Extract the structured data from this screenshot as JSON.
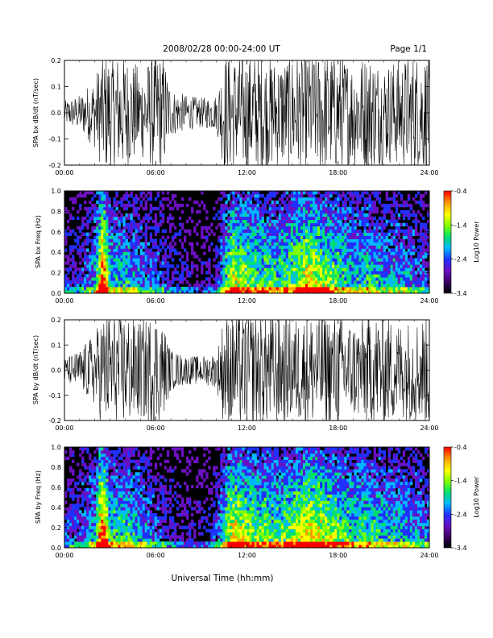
{
  "header": {
    "date_range": "2008/02/28  00:00-24:00 UT",
    "page": "Page 1/1"
  },
  "footer": {
    "x_axis_title": "Universal Time (hh:mm)"
  },
  "colors": {
    "trace": "#000000",
    "spectrogram_background": "#000000",
    "colormap": [
      "#000000",
      "#3a0060",
      "#6a10c0",
      "#2030ff",
      "#00b8ff",
      "#00e070",
      "#80ff00",
      "#ffff00",
      "#ffa000",
      "#ff0000"
    ]
  },
  "chart_data": [
    {
      "type": "line",
      "ylabel": "SPA bx dB/dt (nT/sec)",
      "x_range": [
        0,
        24
      ],
      "ylim": [
        -0.2,
        0.2
      ],
      "yticks": [
        "0.2",
        "0.1",
        "0.0",
        "-0.1",
        "-0.2"
      ],
      "x_ticks": [
        "00:00",
        "06:00",
        "12:00",
        "18:00",
        "24:00"
      ],
      "envelope": {
        "hours": [
          0,
          1,
          2,
          2.5,
          3,
          4,
          5,
          6,
          6.5,
          7,
          8,
          9,
          10,
          10.5,
          11,
          12,
          13,
          14,
          15,
          16,
          17,
          18,
          19,
          20,
          21,
          22,
          23,
          24
        ],
        "amplitude": [
          0.04,
          0.06,
          0.12,
          0.2,
          0.2,
          0.2,
          0.15,
          0.2,
          0.2,
          0.08,
          0.06,
          0.05,
          0.06,
          0.2,
          0.2,
          0.2,
          0.2,
          0.18,
          0.2,
          0.2,
          0.2,
          0.2,
          0.18,
          0.2,
          0.17,
          0.18,
          0.2,
          0.2
        ]
      }
    },
    {
      "type": "heatmap",
      "ylabel": "SPA bx Freq (Hz)",
      "x_range": [
        0,
        24
      ],
      "ylim": [
        0,
        1.0
      ],
      "yticks": [
        "1.0",
        "0.8",
        "0.6",
        "0.4",
        "0.2",
        "0.0"
      ],
      "x_ticks": [
        "00:00",
        "06:00",
        "12:00",
        "18:00",
        "24:00"
      ],
      "colorbar": {
        "label": "Log10 Power",
        "ticks": [
          "-0.4",
          "-1.4",
          "-2.4",
          "-3.4"
        ],
        "range": [
          -3.4,
          -0.4
        ]
      },
      "activity": {
        "hours": [
          0,
          1,
          2,
          2.5,
          2.7,
          3,
          4,
          5,
          6,
          7,
          8,
          9,
          10,
          11,
          12,
          13,
          14,
          15,
          16,
          17,
          18,
          19,
          20,
          21,
          22,
          23,
          24
        ],
        "level": [
          0.2,
          0.25,
          0.4,
          0.95,
          0.8,
          0.45,
          0.45,
          0.35,
          0.3,
          0.2,
          0.15,
          0.12,
          0.2,
          0.7,
          0.6,
          0.55,
          0.5,
          0.6,
          0.75,
          0.65,
          0.55,
          0.45,
          0.5,
          0.4,
          0.4,
          0.35,
          0.3
        ]
      }
    },
    {
      "type": "line",
      "ylabel": "SPA by dB/dt (nT/sec)",
      "x_range": [
        0,
        24
      ],
      "ylim": [
        -0.2,
        0.2
      ],
      "yticks": [
        "0.2",
        "0.1",
        "0.0",
        "-0.1",
        "-0.2"
      ],
      "x_ticks": [
        "00:00",
        "06:00",
        "12:00",
        "18:00",
        "24:00"
      ],
      "envelope": {
        "hours": [
          0,
          1,
          2,
          2.5,
          3,
          4,
          5,
          6,
          6.5,
          7,
          8,
          9,
          10,
          10.5,
          11,
          12,
          13,
          14,
          15,
          16,
          17,
          18,
          19,
          20,
          21,
          22,
          23,
          24
        ],
        "amplitude": [
          0.04,
          0.07,
          0.13,
          0.2,
          0.2,
          0.2,
          0.17,
          0.2,
          0.16,
          0.07,
          0.05,
          0.05,
          0.06,
          0.2,
          0.2,
          0.2,
          0.2,
          0.2,
          0.18,
          0.2,
          0.2,
          0.2,
          0.17,
          0.2,
          0.2,
          0.17,
          0.18,
          0.2
        ]
      }
    },
    {
      "type": "heatmap",
      "ylabel": "SPA by Freq (Hz)",
      "x_range": [
        0,
        24
      ],
      "ylim": [
        0,
        1.0
      ],
      "yticks": [
        "1.0",
        "0.8",
        "0.6",
        "0.4",
        "0.2",
        "0.0"
      ],
      "x_ticks": [
        "00:00",
        "06:00",
        "12:00",
        "18:00",
        "24:00"
      ],
      "colorbar": {
        "label": "Log10 Power",
        "ticks": [
          "-0.4",
          "-1.4",
          "-2.4",
          "-3.4"
        ],
        "range": [
          -3.4,
          -0.4
        ]
      },
      "activity": {
        "hours": [
          0,
          1,
          2,
          2.5,
          2.7,
          3,
          4,
          5,
          6,
          7,
          8,
          9,
          10,
          11,
          12,
          13,
          14,
          15,
          16,
          17,
          18,
          19,
          20,
          21,
          22,
          23,
          24
        ],
        "level": [
          0.25,
          0.3,
          0.45,
          0.95,
          0.85,
          0.5,
          0.5,
          0.4,
          0.3,
          0.2,
          0.15,
          0.15,
          0.25,
          0.75,
          0.65,
          0.6,
          0.55,
          0.65,
          0.75,
          0.7,
          0.6,
          0.5,
          0.55,
          0.45,
          0.45,
          0.4,
          0.35
        ]
      }
    }
  ]
}
